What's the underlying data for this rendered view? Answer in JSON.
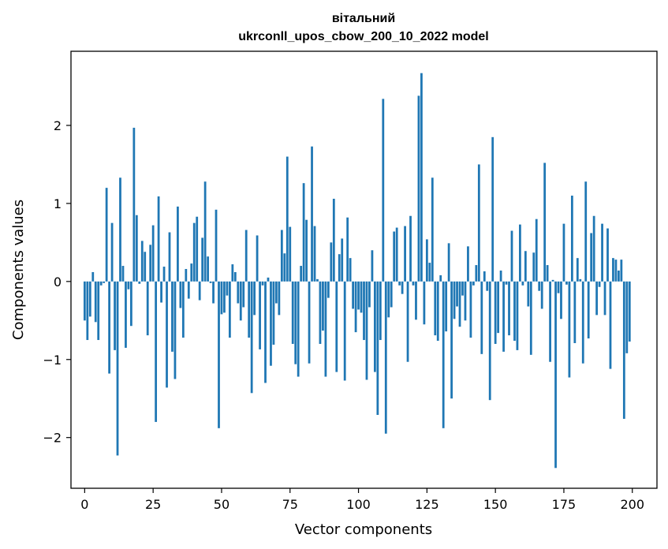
{
  "chart_data": {
    "type": "bar",
    "title": "вітальний",
    "subtitle": "ukrconll_upos_cbow_200_10_2022 model",
    "xlabel": "Vector components",
    "ylabel": "Components values",
    "xlim": [
      -5,
      209
    ],
    "ylim": [
      -2.65,
      2.95
    ],
    "xticks": [
      0,
      25,
      50,
      75,
      100,
      125,
      150,
      175,
      200
    ],
    "yticks": [
      -2,
      -1,
      0,
      1,
      2
    ],
    "ytick_labels": [
      "−2",
      "−1",
      "0",
      "1",
      "2"
    ],
    "bar_color": "#1f77b4",
    "grid": false,
    "values": [
      -0.5,
      -0.75,
      -0.45,
      0.12,
      -0.52,
      -0.75,
      -0.05,
      -0.02,
      1.2,
      -1.18,
      0.75,
      -0.88,
      -2.23,
      1.33,
      0.2,
      -0.85,
      -0.1,
      -0.57,
      1.97,
      0.85,
      -0.03,
      0.52,
      0.38,
      -0.69,
      0.47,
      0.72,
      -1.8,
      1.09,
      -0.27,
      0.19,
      -1.36,
      0.63,
      -0.9,
      -1.25,
      0.96,
      -0.34,
      -0.72,
      0.16,
      -0.22,
      0.23,
      0.75,
      0.83,
      -0.24,
      0.56,
      1.28,
      0.32,
      -0.02,
      -0.28,
      0.92,
      -1.88,
      -0.42,
      -0.4,
      -0.18,
      -0.72,
      0.22,
      0.12,
      -0.28,
      -0.5,
      -0.33,
      0.66,
      -0.72,
      -1.43,
      -0.43,
      0.59,
      -0.87,
      -0.05,
      -1.3,
      0.05,
      -1.08,
      -0.81,
      -0.28,
      -0.43,
      0.66,
      0.36,
      1.6,
      0.7,
      -0.8,
      -1.06,
      -1.22,
      0.2,
      1.26,
      0.79,
      -1.05,
      1.73,
      0.71,
      0.03,
      -0.8,
      -0.63,
      -1.22,
      -0.21,
      0.5,
      1.06,
      -1.16,
      0.35,
      0.55,
      -1.27,
      0.82,
      0.3,
      -0.35,
      -0.65,
      -0.36,
      -0.4,
      -0.75,
      -1.26,
      -0.33,
      0.4,
      -1.16,
      -1.71,
      -0.75,
      2.34,
      -1.95,
      -0.46,
      -0.33,
      0.64,
      0.69,
      -0.05,
      -0.16,
      0.71,
      -1.03,
      0.84,
      -0.05,
      -0.49,
      2.38,
      2.67,
      -0.55,
      0.54,
      0.24,
      1.33,
      -0.69,
      -0.76,
      0.08,
      -1.88,
      -0.64,
      0.49,
      -1.5,
      -0.48,
      -0.32,
      -0.58,
      -0.18,
      -0.5,
      0.45,
      -0.72,
      -0.05,
      0.21,
      1.5,
      -0.93,
      0.13,
      -0.12,
      -1.52,
      1.85,
      -0.8,
      -0.66,
      0.14,
      -0.9,
      -0.04,
      -0.69,
      0.65,
      -0.76,
      -0.88,
      0.73,
      -0.05,
      0.39,
      -0.32,
      -0.94,
      0.37,
      0.8,
      -0.12,
      -0.35,
      1.52,
      0.21,
      -1.03,
      0.02,
      -2.39,
      -0.15,
      -0.48,
      0.74,
      -0.04,
      -1.23,
      1.1,
      -0.79,
      0.3,
      0.03,
      -1.05,
      1.28,
      -0.73,
      0.62,
      0.84,
      -0.43,
      -0.07,
      0.74,
      -0.43,
      0.68,
      -1.12,
      0.3,
      0.28,
      0.14,
      0.28,
      -1.76,
      -0.92,
      -0.77
    ]
  }
}
